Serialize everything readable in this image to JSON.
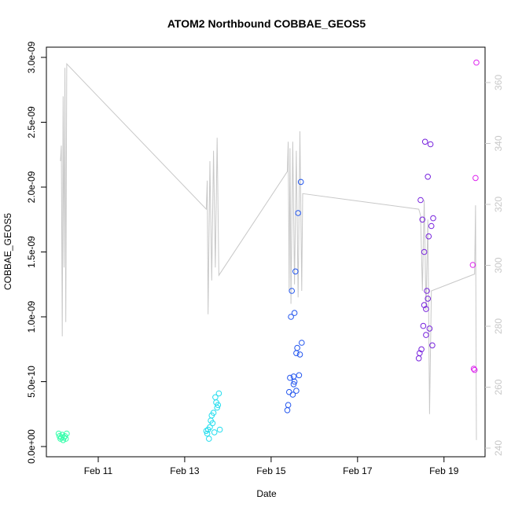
{
  "chart_data": {
    "type": "scatter",
    "title": "ATOM2 Northbound COBBAE_GEOS5",
    "xlabel": "Date",
    "ylabel": "COBBAE_GEOS5",
    "x_unit": "days",
    "xlim": [
      "2016-02-10T00:00",
      "2016-02-19T18:00"
    ],
    "ylim": [
      0,
      3e-09
    ],
    "x_ticks": [
      {
        "x": "2016-02-11",
        "label": "Feb 11"
      },
      {
        "x": "2016-02-13",
        "label": "Feb 13"
      },
      {
        "x": "2016-02-15",
        "label": "Feb 15"
      },
      {
        "x": "2016-02-17",
        "label": "Feb 17"
      },
      {
        "x": "2016-02-19",
        "label": "Feb 19"
      }
    ],
    "y_ticks": [
      {
        "v": 0,
        "label": "0.0e+00"
      },
      {
        "v": 5e-10,
        "label": "5.0e-10"
      },
      {
        "v": 1e-09,
        "label": "1.0e-09"
      },
      {
        "v": 1.5e-09,
        "label": "1.5e-09"
      },
      {
        "v": 2e-09,
        "label": "2.0e-09"
      },
      {
        "v": 2.5e-09,
        "label": "2.5e-09"
      },
      {
        "v": 3e-09,
        "label": "3.0e-09"
      }
    ],
    "y2lim": [
      240,
      362
    ],
    "y2_ticks": [
      {
        "v": 240,
        "label": "240"
      },
      {
        "v": 260,
        "label": "260"
      },
      {
        "v": 280,
        "label": "280"
      },
      {
        "v": 300,
        "label": "300"
      },
      {
        "v": 320,
        "label": "320"
      },
      {
        "v": 340,
        "label": "340"
      },
      {
        "v": 360,
        "label": "360"
      }
    ],
    "grid": false,
    "line_color": "#c8c8c8",
    "secondary_line": [
      [
        "2016-02-10T03:00",
        2.2e-09
      ],
      [
        "2016-02-10T03:30",
        2.32e-09
      ],
      [
        "2016-02-10T04:00",
        8.5e-10
      ],
      [
        "2016-02-10T04:30",
        2.7e-09
      ],
      [
        "2016-02-10T05:00",
        1.38e-09
      ],
      [
        "2016-02-10T05:30",
        2.92e-09
      ],
      [
        "2016-02-10T06:00",
        9.6e-10
      ],
      [
        "2016-02-10T06:30",
        2.95e-09
      ],
      [
        "2016-02-13T12:00",
        1.83e-09
      ],
      [
        "2016-02-13T12:30",
        2.05e-09
      ],
      [
        "2016-02-13T13:00",
        1.02e-09
      ],
      [
        "2016-02-13T14:00",
        2.2e-09
      ],
      [
        "2016-02-13T15:00",
        1.28e-09
      ],
      [
        "2016-02-13T16:00",
        2.28e-09
      ],
      [
        "2016-02-13T17:00",
        1.38e-09
      ],
      [
        "2016-02-13T18:00",
        2.38e-09
      ],
      [
        "2016-02-13T19:00",
        1.32e-09
      ],
      [
        "2016-02-15T09:00",
        2.12e-09
      ],
      [
        "2016-02-15T09:30",
        2.35e-09
      ],
      [
        "2016-02-15T10:00",
        1.2e-09
      ],
      [
        "2016-02-15T10:30",
        2.3e-09
      ],
      [
        "2016-02-15T11:00",
        1.1e-09
      ],
      [
        "2016-02-15T12:00",
        2.35e-09
      ],
      [
        "2016-02-15T13:00",
        1.25e-09
      ],
      [
        "2016-02-15T14:00",
        2.28e-09
      ],
      [
        "2016-02-15T15:00",
        1.15e-09
      ],
      [
        "2016-02-15T16:00",
        2.43e-09
      ],
      [
        "2016-02-15T17:00",
        1.2e-09
      ],
      [
        "2016-02-15T17:30",
        1.95e-09
      ],
      [
        "2016-02-18T10:00",
        1.83e-09
      ],
      [
        "2016-02-18T11:00",
        1.78e-09
      ],
      [
        "2016-02-18T12:00",
        1.2e-09
      ],
      [
        "2016-02-18T13:00",
        1.9e-09
      ],
      [
        "2016-02-18T14:00",
        1.05e-09
      ],
      [
        "2016-02-18T15:00",
        1.75e-09
      ],
      [
        "2016-02-18T16:00",
        2.5e-10
      ],
      [
        "2016-02-18T17:00",
        1.2e-09
      ],
      [
        "2016-02-19T17:00",
        1.33e-09
      ],
      [
        "2016-02-19T17:30",
        1.86e-09
      ],
      [
        "2016-02-19T18:00",
        5e-11
      ]
    ],
    "series": [
      {
        "color": "#33ffaa",
        "points": [
          [
            "2016-02-10T02:00",
            1e-10
          ],
          [
            "2016-02-10T02:30",
            8e-11
          ],
          [
            "2016-02-10T03:00",
            6e-11
          ],
          [
            "2016-02-10T03:30",
            7e-11
          ],
          [
            "2016-02-10T04:00",
            9e-11
          ],
          [
            "2016-02-10T04:30",
            5e-11
          ],
          [
            "2016-02-10T05:00",
            7e-11
          ],
          [
            "2016-02-10T05:30",
            8e-11
          ],
          [
            "2016-02-10T06:00",
            6e-11
          ],
          [
            "2016-02-10T06:30",
            1e-10
          ]
        ]
      },
      {
        "color": "#22ddee",
        "points": [
          [
            "2016-02-13T12:00",
            1.2e-10
          ],
          [
            "2016-02-13T12:30",
            1e-10
          ],
          [
            "2016-02-13T13:00",
            1.3e-10
          ],
          [
            "2016-02-13T13:30",
            6e-11
          ],
          [
            "2016-02-13T14:00",
            1.5e-10
          ],
          [
            "2016-02-13T14:30",
            2e-10
          ],
          [
            "2016-02-13T15:00",
            2.4e-10
          ],
          [
            "2016-02-13T15:30",
            1.8e-10
          ],
          [
            "2016-02-13T16:00",
            2.6e-10
          ],
          [
            "2016-02-13T16:30",
            1.1e-10
          ],
          [
            "2016-02-13T17:00",
            3.8e-10
          ],
          [
            "2016-02-13T17:30",
            3.4e-10
          ],
          [
            "2016-02-13T18:00",
            3e-10
          ],
          [
            "2016-02-13T18:30",
            3.2e-10
          ],
          [
            "2016-02-13T19:00",
            4.1e-10
          ],
          [
            "2016-02-13T19:30",
            1.3e-10
          ]
        ]
      },
      {
        "color": "#2255ee",
        "points": [
          [
            "2016-02-15T09:00",
            2.8e-10
          ],
          [
            "2016-02-15T09:30",
            3.2e-10
          ],
          [
            "2016-02-15T10:00",
            4.2e-10
          ],
          [
            "2016-02-15T10:30",
            5.3e-10
          ],
          [
            "2016-02-15T11:00",
            1e-09
          ],
          [
            "2016-02-15T11:30",
            1.2e-09
          ],
          [
            "2016-02-15T12:00",
            4e-10
          ],
          [
            "2016-02-15T12:30",
            4.8e-10
          ],
          [
            "2016-02-15T13:00",
            1.03e-09
          ],
          [
            "2016-02-15T13:30",
            1.35e-09
          ],
          [
            "2016-02-15T14:00",
            7.2e-10
          ],
          [
            "2016-02-15T14:30",
            7.6e-10
          ],
          [
            "2016-02-15T15:00",
            1.8e-09
          ],
          [
            "2016-02-15T15:30",
            5.5e-10
          ],
          [
            "2016-02-15T16:00",
            7.1e-10
          ],
          [
            "2016-02-15T16:30",
            2.04e-09
          ],
          [
            "2016-02-15T17:00",
            8e-10
          ],
          [
            "2016-02-15T12:30",
            5.4e-10
          ],
          [
            "2016-02-15T13:00",
            5e-10
          ],
          [
            "2016-02-15T14:00",
            4.3e-10
          ]
        ]
      },
      {
        "color": "#7722dd",
        "points": [
          [
            "2016-02-18T10:00",
            6.8e-10
          ],
          [
            "2016-02-18T10:30",
            7.2e-10
          ],
          [
            "2016-02-18T11:00",
            1.9e-09
          ],
          [
            "2016-02-18T11:30",
            7.5e-10
          ],
          [
            "2016-02-18T12:00",
            1.75e-09
          ],
          [
            "2016-02-18T12:30",
            9.3e-10
          ],
          [
            "2016-02-18T13:00",
            1.5e-09
          ],
          [
            "2016-02-18T13:30",
            2.35e-09
          ],
          [
            "2016-02-18T14:00",
            8.6e-10
          ],
          [
            "2016-02-18T14:30",
            1.2e-09
          ],
          [
            "2016-02-18T15:00",
            2.08e-09
          ],
          [
            "2016-02-18T15:30",
            1.62e-09
          ],
          [
            "2016-02-18T16:00",
            9.1e-10
          ],
          [
            "2016-02-18T16:30",
            2.33e-09
          ],
          [
            "2016-02-18T17:00",
            1.7e-09
          ],
          [
            "2016-02-18T17:30",
            7.8e-10
          ],
          [
            "2016-02-18T18:00",
            1.76e-09
          ],
          [
            "2016-02-18T13:00",
            1.09e-09
          ],
          [
            "2016-02-18T14:00",
            1.06e-09
          ],
          [
            "2016-02-18T15:00",
            1.14e-09
          ]
        ]
      },
      {
        "color": "#dd22ee",
        "points": [
          [
            "2016-02-19T16:00",
            1.4e-09
          ],
          [
            "2016-02-19T16:30",
            6e-10
          ],
          [
            "2016-02-19T17:00",
            5.9e-10
          ],
          [
            "2016-02-19T17:30",
            2.07e-09
          ],
          [
            "2016-02-19T18:00",
            2.96e-09
          ]
        ]
      }
    ]
  }
}
